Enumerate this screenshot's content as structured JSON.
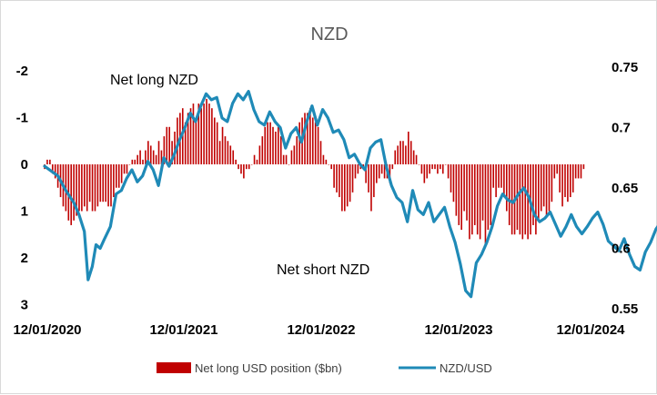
{
  "chart_data": {
    "type": "bar+line",
    "title": "NZD",
    "x_tick_labels": [
      "12/01/2020",
      "12/01/2021",
      "12/01/2022",
      "12/01/2023",
      "12/01/2024"
    ],
    "left_axis": {
      "ticks": [
        "-2",
        "-1",
        "0",
        "1",
        "2",
        "3"
      ],
      "range": [
        -2,
        3
      ],
      "inverted": true
    },
    "right_axis": {
      "ticks": [
        "0.75",
        "0.7",
        "0.65",
        "0.6",
        "0.55"
      ],
      "range": [
        0.55,
        0.75
      ]
    },
    "annotations": [
      "Net long NZD",
      "Net short NZD"
    ],
    "legend": {
      "placement": "bottom",
      "entries": [
        "Net long USD position ($bn)",
        "NZD/USD"
      ]
    },
    "bar_color": "#c00000",
    "line_color": "#1f8ab7",
    "series": [
      {
        "name": "Net long USD position ($bn)",
        "axis": "left",
        "x_start": "12/01/2020",
        "x_step_years": 0.01923,
        "values": [
          0.1,
          -0.1,
          -0.1,
          0.2,
          0.3,
          0.5,
          0.7,
          0.9,
          1.0,
          1.2,
          1.3,
          1.2,
          1.1,
          1.0,
          1.0,
          0.9,
          1.0,
          0.8,
          1.0,
          1.0,
          0.9,
          0.8,
          0.8,
          0.8,
          0.9,
          0.9,
          0.7,
          0.5,
          0.5,
          0.4,
          0.2,
          0.2,
          0.0,
          -0.1,
          -0.1,
          -0.2,
          -0.3,
          -0.1,
          -0.3,
          -0.5,
          -0.4,
          -0.3,
          -0.2,
          -0.5,
          -0.3,
          -0.6,
          -0.8,
          -0.8,
          -0.5,
          -0.7,
          -1.0,
          -1.1,
          -1.2,
          -0.9,
          -1.1,
          -1.2,
          -1.3,
          -1.0,
          -1.3,
          -1.2,
          -1.3,
          -1.4,
          -1.3,
          -1.2,
          -1.0,
          -0.9,
          -0.5,
          -0.8,
          -0.6,
          -0.5,
          -0.4,
          -0.3,
          -0.1,
          0.1,
          0.2,
          0.3,
          0.1,
          0.1,
          0.0,
          -0.2,
          -0.1,
          -0.4,
          -0.6,
          -0.8,
          -0.9,
          -0.9,
          -0.8,
          -0.7,
          -0.8,
          -0.6,
          -0.2,
          -0.2,
          0.0,
          -0.3,
          -0.4,
          -0.6,
          -0.9,
          -1.0,
          -1.1,
          -1.1,
          -1.2,
          -1.0,
          -0.9,
          -0.8,
          -0.5,
          -0.2,
          -0.1,
          0.0,
          0.1,
          0.5,
          0.6,
          0.7,
          1.0,
          1.0,
          0.9,
          0.8,
          0.6,
          0.3,
          0.2,
          0.1,
          0.1,
          0.4,
          0.6,
          1.0,
          0.7,
          0.4,
          0.3,
          0.2,
          0.3,
          0.3,
          0.4,
          0.1,
          -0.3,
          -0.4,
          -0.5,
          -0.5,
          -0.4,
          -0.7,
          -0.5,
          -0.3,
          -0.2,
          0.0,
          0.2,
          0.4,
          0.3,
          0.2,
          0.1,
          0.1,
          0.2,
          0.1,
          0.2,
          0.0,
          0.3,
          0.6,
          0.8,
          1.1,
          1.3,
          1.4,
          1.0,
          1.2,
          1.6,
          1.5,
          1.3,
          1.5,
          1.6,
          1.2,
          1.7,
          1.4,
          1.3,
          0.5,
          0.7,
          0.5,
          0.5,
          0.7,
          1.0,
          1.3,
          1.5,
          1.5,
          1.4,
          1.5,
          1.6,
          1.5,
          1.6,
          1.5,
          1.3,
          1.5,
          1.2,
          1.0,
          0.9,
          1.1,
          1.0,
          0.8,
          0.3,
          0.2,
          0.6,
          0.9,
          0.7,
          0.8,
          0.7,
          0.6,
          0.3,
          0.3,
          0.3,
          0.1
        ]
      },
      {
        "name": "NZD/USD",
        "axis": "right",
        "points": [
          [
            "12/01/2020",
            0.668
          ],
          [
            "01/05/2021",
            0.66
          ],
          [
            "01/26/2021",
            0.648
          ],
          [
            "02/16/2021",
            0.638
          ],
          [
            "03/02/2021",
            0.628
          ],
          [
            "03/16/2021",
            0.614
          ],
          [
            "03/26/2021",
            0.574
          ],
          [
            "04/06/2021",
            0.585
          ],
          [
            "04/16/2021",
            0.603
          ],
          [
            "04/27/2021",
            0.6
          ],
          [
            "05/07/2021",
            0.607
          ],
          [
            "05/24/2021",
            0.618
          ],
          [
            "06/08/2021",
            0.645
          ],
          [
            "06/22/2021",
            0.648
          ],
          [
            "07/06/2021",
            0.658
          ],
          [
            "07/20/2021",
            0.665
          ],
          [
            "08/03/2021",
            0.655
          ],
          [
            "08/17/2021",
            0.66
          ],
          [
            "08/31/2021",
            0.672
          ],
          [
            "09/14/2021",
            0.665
          ],
          [
            "09/28/2021",
            0.652
          ],
          [
            "10/12/2021",
            0.675
          ],
          [
            "10/26/2021",
            0.668
          ],
          [
            "11/09/2021",
            0.678
          ],
          [
            "11/23/2021",
            0.69
          ],
          [
            "12/07/2021",
            0.7
          ],
          [
            "12/21/2021",
            0.712
          ],
          [
            "01/04/2022",
            0.705
          ],
          [
            "01/18/2022",
            0.718
          ],
          [
            "02/01/2022",
            0.728
          ],
          [
            "02/15/2022",
            0.723
          ],
          [
            "03/01/2022",
            0.725
          ],
          [
            "03/15/2022",
            0.708
          ],
          [
            "03/29/2022",
            0.705
          ],
          [
            "04/12/2022",
            0.72
          ],
          [
            "04/26/2022",
            0.728
          ],
          [
            "05/10/2022",
            0.723
          ],
          [
            "05/24/2022",
            0.73
          ],
          [
            "06/07/2022",
            0.715
          ],
          [
            "06/21/2022",
            0.705
          ],
          [
            "07/05/2022",
            0.702
          ],
          [
            "07/19/2022",
            0.713
          ],
          [
            "08/02/2022",
            0.705
          ],
          [
            "08/16/2022",
            0.7
          ],
          [
            "08/30/2022",
            0.683
          ],
          [
            "09/13/2022",
            0.695
          ],
          [
            "09/27/2022",
            0.7
          ],
          [
            "10/11/2022",
            0.688
          ],
          [
            "10/25/2022",
            0.705
          ],
          [
            "11/08/2022",
            0.718
          ],
          [
            "11/22/2022",
            0.702
          ],
          [
            "12/06/2022",
            0.715
          ],
          [
            "12/20/2022",
            0.708
          ],
          [
            "01/03/2023",
            0.696
          ],
          [
            "01/17/2023",
            0.698
          ],
          [
            "01/31/2023",
            0.69
          ],
          [
            "02/14/2023",
            0.675
          ],
          [
            "02/28/2023",
            0.678
          ],
          [
            "03/14/2023",
            0.67
          ],
          [
            "03/28/2023",
            0.665
          ],
          [
            "04/11/2023",
            0.683
          ],
          [
            "04/25/2023",
            0.688
          ],
          [
            "05/09/2023",
            0.69
          ],
          [
            "05/23/2023",
            0.668
          ],
          [
            "06/06/2023",
            0.652
          ],
          [
            "06/20/2023",
            0.642
          ],
          [
            "07/04/2023",
            0.638
          ],
          [
            "07/18/2023",
            0.622
          ],
          [
            "08/01/2023",
            0.648
          ],
          [
            "08/15/2023",
            0.632
          ],
          [
            "08/29/2023",
            0.628
          ],
          [
            "09/12/2023",
            0.638
          ],
          [
            "09/26/2023",
            0.622
          ],
          [
            "10/10/2023",
            0.628
          ],
          [
            "10/24/2023",
            0.634
          ],
          [
            "11/07/2023",
            0.618
          ],
          [
            "11/21/2023",
            0.605
          ],
          [
            "12/05/2023",
            0.587
          ],
          [
            "12/19/2023",
            0.565
          ],
          [
            "01/02/2024",
            0.56
          ],
          [
            "01/16/2024",
            0.588
          ],
          [
            "01/30/2024",
            0.595
          ],
          [
            "02/13/2024",
            0.605
          ],
          [
            "02/27/2024",
            0.618
          ],
          [
            "03/12/2024",
            0.635
          ],
          [
            "03/26/2024",
            0.645
          ],
          [
            "04/09/2024",
            0.64
          ],
          [
            "04/23/2024",
            0.638
          ],
          [
            "05/07/2024",
            0.645
          ],
          [
            "05/21/2024",
            0.65
          ],
          [
            "06/04/2024",
            0.642
          ],
          [
            "06/18/2024",
            0.628
          ],
          [
            "07/02/2024",
            0.622
          ],
          [
            "07/16/2024",
            0.625
          ],
          [
            "07/30/2024",
            0.63
          ],
          [
            "08/13/2024",
            0.62
          ],
          [
            "08/27/2024",
            0.61
          ],
          [
            "09/10/2024",
            0.618
          ],
          [
            "09/24/2024",
            0.628
          ],
          [
            "10/08/2024",
            0.618
          ],
          [
            "10/22/2024",
            0.612
          ],
          [
            "11/05/2024",
            0.618
          ],
          [
            "11/19/2024",
            0.625
          ],
          [
            "12/03/2024",
            0.63
          ],
          [
            "12/17/2024",
            0.62
          ],
          [
            "12/31/2024",
            0.606
          ],
          [
            "01/14/2025",
            0.602
          ],
          [
            "01/28/2025",
            0.598
          ],
          [
            "02/11/2025",
            0.608
          ],
          [
            "02/25/2025",
            0.595
          ],
          [
            "03/11/2025",
            0.585
          ],
          [
            "03/25/2025",
            0.582
          ],
          [
            "04/08/2025",
            0.597
          ],
          [
            "04/22/2025",
            0.605
          ],
          [
            "05/06/2025",
            0.616
          ],
          [
            "05/20/2025",
            0.622
          ],
          [
            "06/03/2025",
            0.632
          ],
          [
            "06/17/2025",
            0.627
          ],
          [
            "06/30/2025",
            0.623
          ]
        ]
      }
    ]
  }
}
